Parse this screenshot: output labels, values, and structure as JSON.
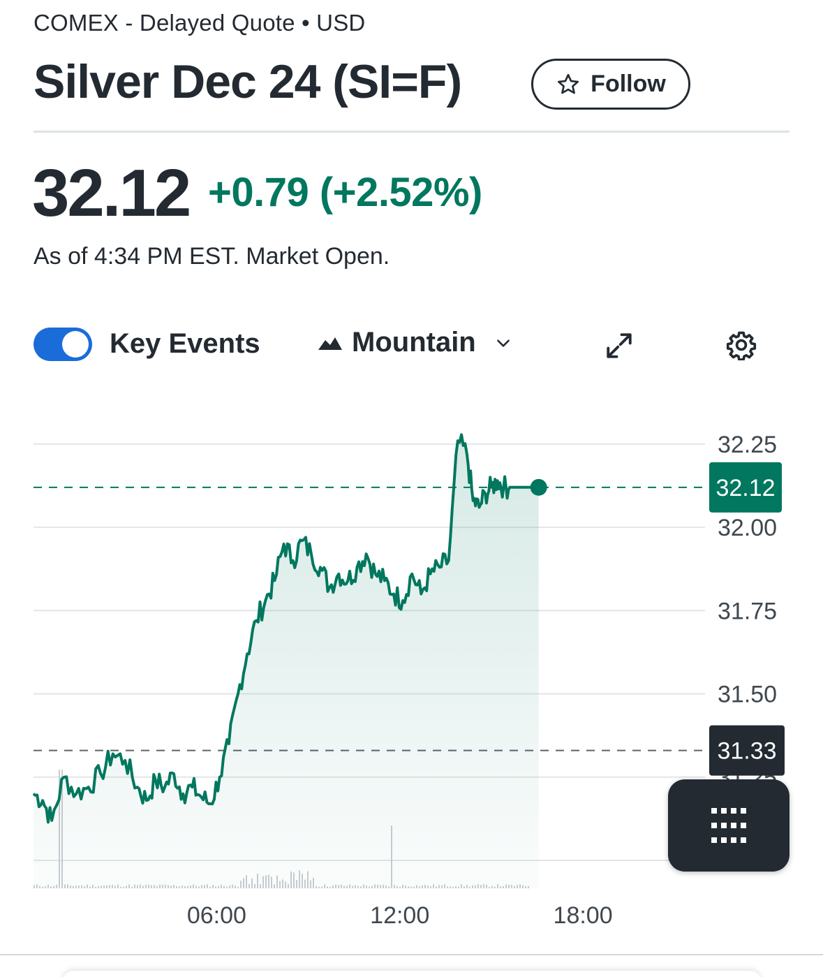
{
  "header": {
    "exchange_line": "COMEX - Delayed Quote • USD",
    "title": "Silver Dec 24 (SI=F)",
    "follow_label": "Follow"
  },
  "quote": {
    "price": "32.12",
    "change": "+0.79 (+2.52%)",
    "as_of": "As of 4:34 PM EST. Market Open.",
    "change_color": "#00775e"
  },
  "toolbar": {
    "key_events_label": "Key Events",
    "key_events_on": true,
    "chart_type_label": "Mountain",
    "icons": [
      "mountain-icon",
      "chevron-down-icon",
      "expand-icon",
      "gear-icon"
    ]
  },
  "chart_data": {
    "type": "area",
    "x_tick_labels": [
      "06:00",
      "12:00",
      "18:00"
    ],
    "y_tick_labels": [
      "32.25",
      "32.00",
      "31.75",
      "31.50",
      "31.25"
    ],
    "ylim": [
      31.0,
      32.3
    ],
    "grid": true,
    "current_price_label": "32.12",
    "previous_close_label": "31.33",
    "current_price": 32.12,
    "previous_close": 31.33,
    "line_color": "#00775e",
    "series": [
      {
        "x_hours": [
          0.0,
          0.3,
          0.6,
          1.0,
          1.4,
          1.8,
          2.2,
          2.6,
          3.0,
          3.4,
          3.7,
          4.0,
          4.3,
          4.6,
          4.9,
          5.2,
          5.5,
          5.8,
          6.1,
          6.4,
          6.7,
          7.0,
          7.3,
          7.6,
          7.9,
          8.2,
          8.5,
          8.8,
          9.1,
          9.4,
          9.7,
          10.0,
          10.3,
          10.6,
          10.9,
          11.2,
          11.5,
          11.8,
          12.1,
          12.4,
          12.7,
          13.0,
          13.3,
          13.6,
          13.9,
          14.2,
          14.4,
          14.6,
          14.8,
          15.0,
          15.2,
          15.4,
          15.6,
          15.8,
          16.0,
          16.2,
          16.4,
          16.55
        ],
        "values": [
          31.2,
          31.18,
          31.12,
          31.25,
          31.2,
          31.22,
          31.26,
          31.32,
          31.3,
          31.22,
          31.18,
          31.24,
          31.22,
          31.26,
          31.2,
          31.22,
          31.19,
          31.17,
          31.25,
          31.35,
          31.5,
          31.62,
          31.72,
          31.78,
          31.84,
          31.95,
          31.9,
          31.96,
          31.92,
          31.88,
          31.82,
          31.86,
          31.84,
          31.88,
          31.92,
          31.86,
          31.84,
          31.8,
          31.78,
          31.86,
          31.8,
          31.86,
          31.88,
          31.9,
          32.26,
          32.22,
          32.08,
          32.06,
          32.1,
          32.12,
          32.14,
          32.12,
          32.12,
          32.12,
          32.12,
          32.12,
          32.12,
          32.12
        ]
      }
    ]
  },
  "fab": {
    "icon": "grid-dots-icon"
  }
}
